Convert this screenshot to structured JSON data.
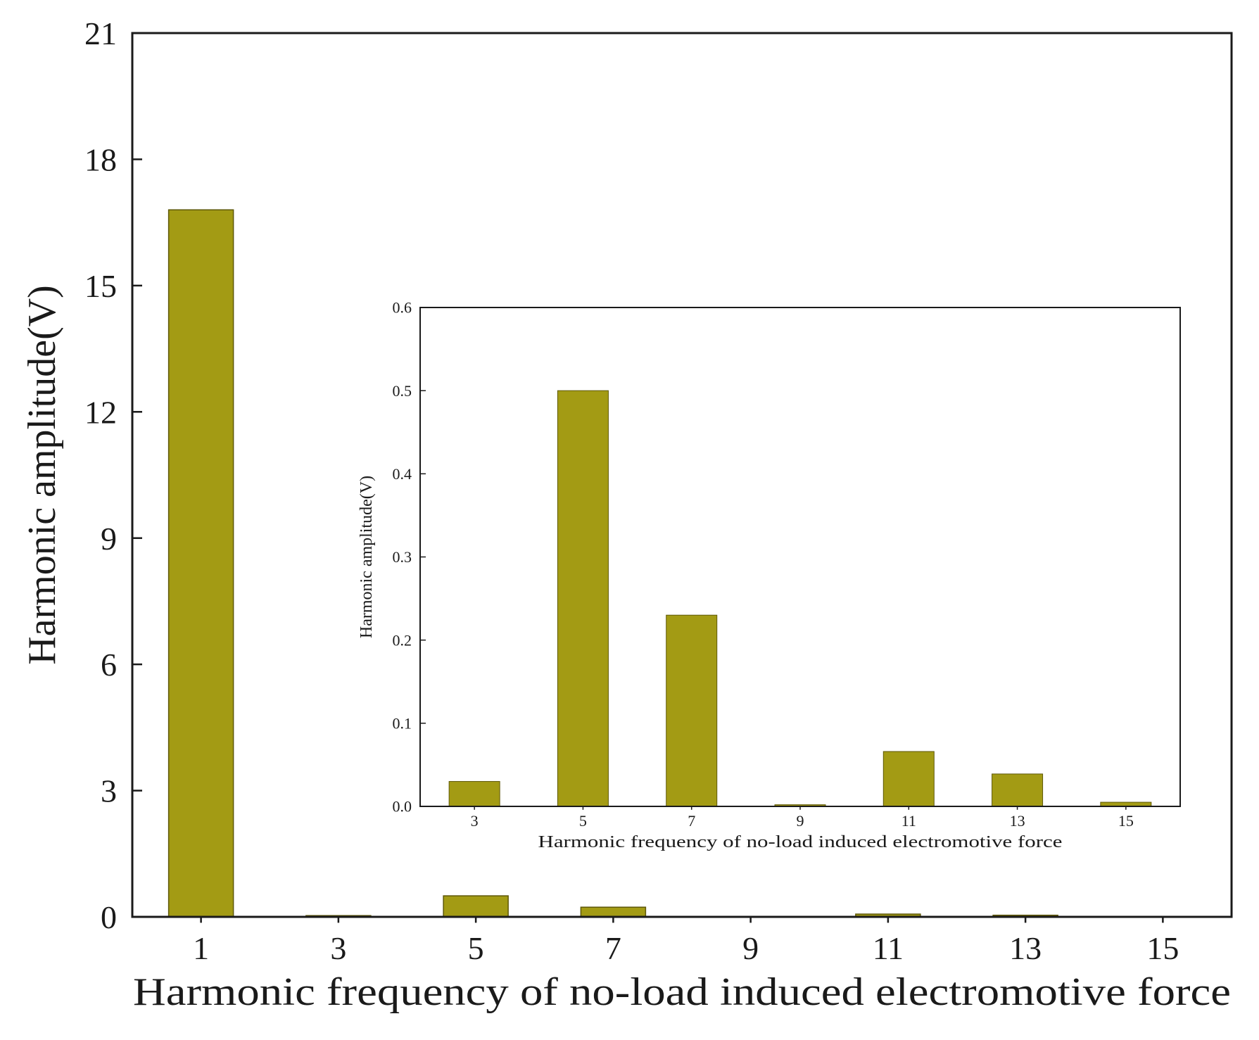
{
  "chart_data": [
    {
      "type": "bar",
      "role": "main",
      "categories": [
        "1",
        "3",
        "5",
        "7",
        "9",
        "11",
        "13",
        "15"
      ],
      "values": [
        16.8,
        0.03,
        0.5,
        0.23,
        0.002,
        0.066,
        0.039,
        0.005
      ],
      "ylim": [
        0,
        21
      ],
      "yticks": [
        "0",
        "3",
        "6",
        "9",
        "12",
        "15",
        "18",
        "21"
      ],
      "xlabel": "Harmonic frequency of no-load induced electromotive force",
      "ylabel": "Harmonic amplitude(V)",
      "bar_color": "#a39b14",
      "grid": false,
      "legend": "none"
    },
    {
      "type": "bar",
      "role": "inset",
      "categories": [
        "3",
        "5",
        "7",
        "9",
        "11",
        "13",
        "15"
      ],
      "values": [
        0.03,
        0.5,
        0.23,
        0.002,
        0.066,
        0.039,
        0.005
      ],
      "ylim": [
        0,
        0.6
      ],
      "yticks": [
        "0.0",
        "0.1",
        "0.2",
        "0.3",
        "0.4",
        "0.5",
        "0.6"
      ],
      "xlabel": "Harmonic frequency of no-load induced electromotive force",
      "ylabel": "Harmonic amplitude(V)",
      "bar_color": "#a39b14",
      "grid": false,
      "legend": "none"
    }
  ]
}
